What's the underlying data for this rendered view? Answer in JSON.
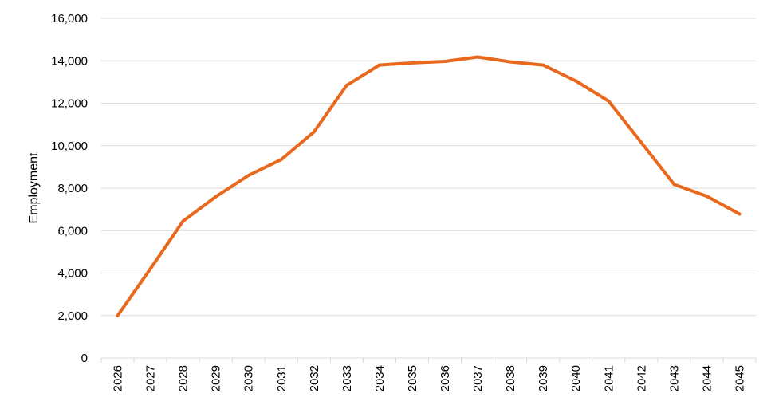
{
  "chart_data": {
    "type": "line",
    "title": "",
    "xlabel": "",
    "ylabel": "Employment",
    "ylim": [
      0,
      16000
    ],
    "yticks": [
      0,
      2000,
      4000,
      6000,
      8000,
      10000,
      12000,
      14000,
      16000
    ],
    "ytick_labels": [
      "0",
      "2,000",
      "4,000",
      "6,000",
      "8,000",
      "10,000",
      "12,000",
      "14,000",
      "16,000"
    ],
    "categories": [
      "2026",
      "2027",
      "2028",
      "2029",
      "2030",
      "2031",
      "2032",
      "2033",
      "2034",
      "2035",
      "2036",
      "2037",
      "2038",
      "2039",
      "2040",
      "2041",
      "2042",
      "2043",
      "2044",
      "2045"
    ],
    "series": [
      {
        "values": [
          2000,
          4200,
          6450,
          7600,
          8600,
          9350,
          10650,
          12850,
          13800,
          13900,
          13970,
          14180,
          13950,
          13800,
          13050,
          12100,
          10150,
          8180,
          7620,
          6780
        ],
        "color": "#E8681D"
      }
    ],
    "grid": true,
    "gridline_color": "#D9D9D9",
    "legend": "none"
  }
}
